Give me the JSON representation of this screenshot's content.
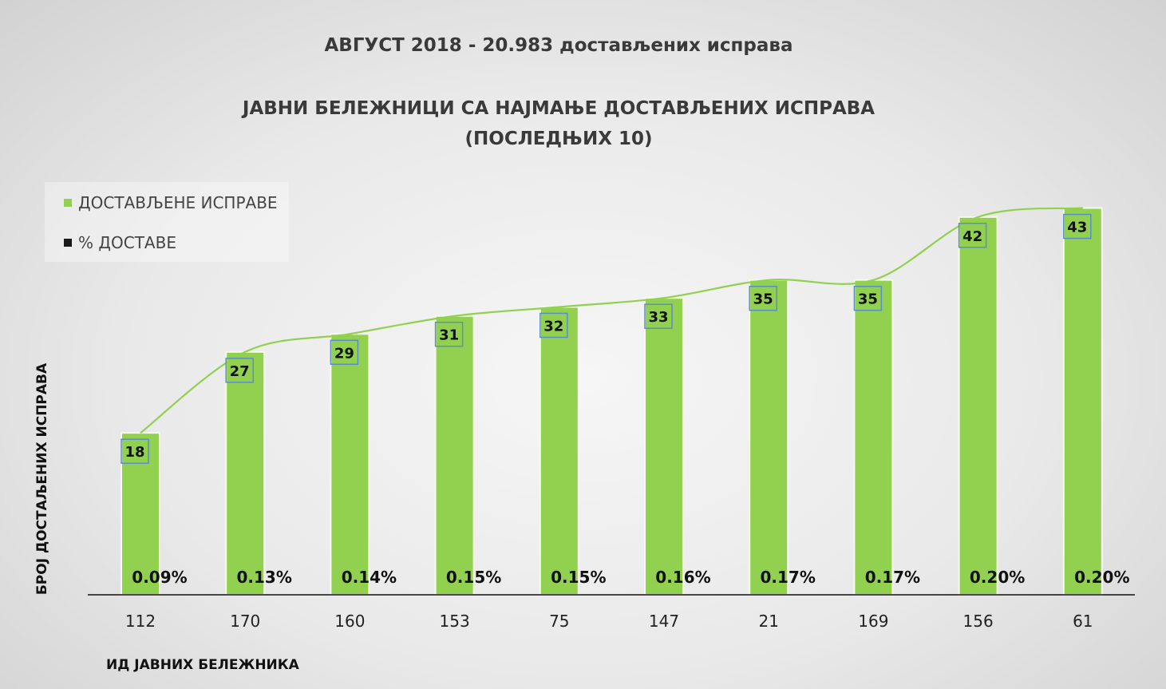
{
  "header": {
    "title": "АВГУСТ 2018 - 20.983 достављених исправа",
    "subtitle_line1": "ЈАВНИ БЕЛЕЖНИЦИ СА НАЈМАЊЕ ДОСТАВЉЕНИХ ИСПРАВА",
    "subtitle_line2": "(ПОСЛЕДЊИХ 10)"
  },
  "legend": {
    "items": [
      {
        "label": "ДОСТАВЉЕНЕ ИСПРАВЕ",
        "color": "#92d050"
      },
      {
        "label": "% ДОСТАВЕ",
        "color": "#1a1a1a"
      }
    ]
  },
  "chart_data": {
    "type": "bar",
    "categories": [
      "112",
      "170",
      "160",
      "153",
      "75",
      "147",
      "21",
      "169",
      "156",
      "61"
    ],
    "series": [
      {
        "name": "ДОСТАВЉЕНЕ ИСПРАВЕ",
        "values": [
          18,
          27,
          29,
          31,
          32,
          33,
          35,
          35,
          42,
          43
        ]
      },
      {
        "name": "% ДОСТАВЕ",
        "values": [
          "0.09%",
          "0.13%",
          "0.14%",
          "0.15%",
          "0.15%",
          "0.16%",
          "0.17%",
          "0.17%",
          "0.20%",
          "0.20%"
        ]
      }
    ],
    "xlabel": "ИД ЈАВНИХ БЕЛЕЖНИКА",
    "ylabel": "БРОЈ ДОСТАЉЕНИХ ИСПРАВА",
    "ylim": [
      0,
      45
    ],
    "grid": false,
    "legend_position": "top-left",
    "bar_color": "#92d050",
    "trend_color": "#92d050"
  }
}
